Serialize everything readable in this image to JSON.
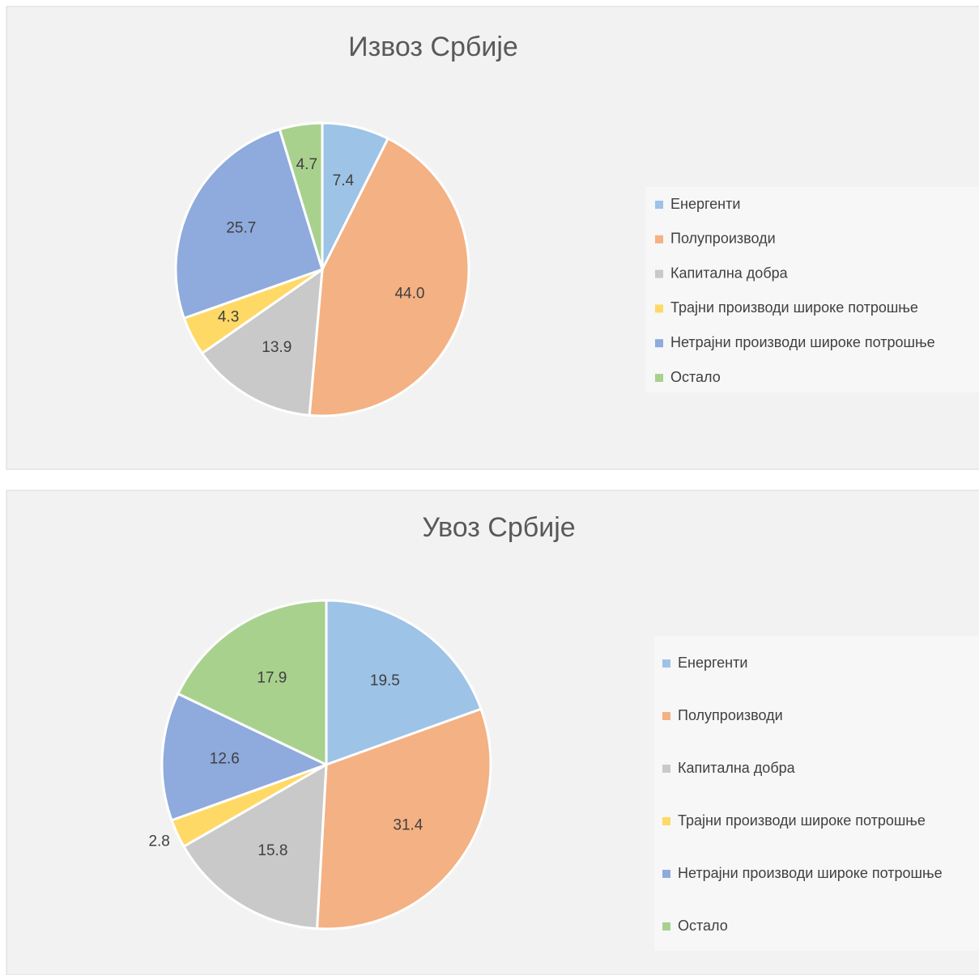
{
  "chart_data": [
    {
      "type": "pie",
      "title": "Извоз Србије",
      "categories": [
        "Енергенти",
        "Полупроизводи",
        "Капитална добра",
        "Трајни производи широке потрошње",
        "Нетрајни производи широке потрошње",
        "Остало"
      ],
      "values": [
        7.4,
        44.0,
        13.9,
        4.3,
        25.7,
        4.7
      ],
      "value_labels": [
        "7.4",
        "44.0",
        "13.9",
        "4.3",
        "25.7",
        "4.7"
      ],
      "colors": [
        "#9dc3e6",
        "#f4b183",
        "#c9c9c9",
        "#ffd966",
        "#8faadc",
        "#a9d18e"
      ],
      "legend": "right"
    },
    {
      "type": "pie",
      "title": "Увоз Србије",
      "categories": [
        "Енергенти",
        "Полупроизводи",
        "Капитална добра",
        "Трајни производи широке потрошње",
        "Нетрајни производи широке потрошње",
        "Остало"
      ],
      "values": [
        19.5,
        31.4,
        15.8,
        2.8,
        12.6,
        17.9
      ],
      "colors": [
        "#9dc3e6",
        "#f4b183",
        "#c9c9c9",
        "#ffd966",
        "#8faadc",
        "#a9d18e"
      ],
      "legend": "right"
    }
  ]
}
